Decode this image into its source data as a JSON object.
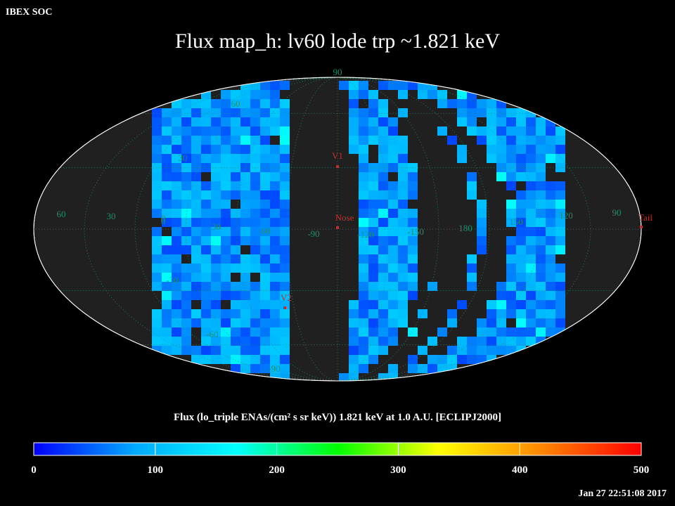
{
  "header": {
    "org": "IBEX SOC",
    "title": "Flux   map_h: lv60 lode trp ~1.821 keV"
  },
  "colorbar": {
    "label": "Flux (lo_triple ENAs/(cm² s sr keV))  1.821 keV at 1.0 A.U. [ECLIPJ2000]",
    "ticks": [
      "0",
      "100",
      "200",
      "300",
      "400",
      "500"
    ],
    "range": [
      0,
      500
    ],
    "stops": [
      "#0000ff",
      "#00aaff",
      "#00ffff",
      "#00ff00",
      "#ffff00",
      "#ff8800",
      "#ff0000"
    ]
  },
  "footer": {
    "timestamp": "Jan 27 22:51:08 2017"
  },
  "chart_data": {
    "type": "heatmap",
    "projection": "Mollweide (ecliptic J2000)",
    "value_range": [
      0,
      500
    ],
    "value_estimate": "most pixels ~20-130, a few bright spots ~150-170",
    "lat_labels": [
      "90",
      "60",
      "30",
      "0",
      "-30",
      "-60",
      "-90"
    ],
    "lon_labels": [
      "60",
      "30",
      "0",
      "-30",
      "-60",
      "-90",
      "-120",
      "-150",
      "180",
      "150",
      "120",
      "90"
    ],
    "markers": [
      {
        "label": "V1",
        "lon": -105,
        "lat": 34
      },
      {
        "label": "Nose",
        "lon": -105,
        "lat": 5
      },
      {
        "label": "V2",
        "lon": -70,
        "lat": -32
      },
      {
        "label": "Tail",
        "lon": 75,
        "lat": 0
      }
    ],
    "colors": {
      "background": "#000000",
      "map_fill": "#202020",
      "grid": "#1f8f6f",
      "marker": "#c03030"
    }
  }
}
